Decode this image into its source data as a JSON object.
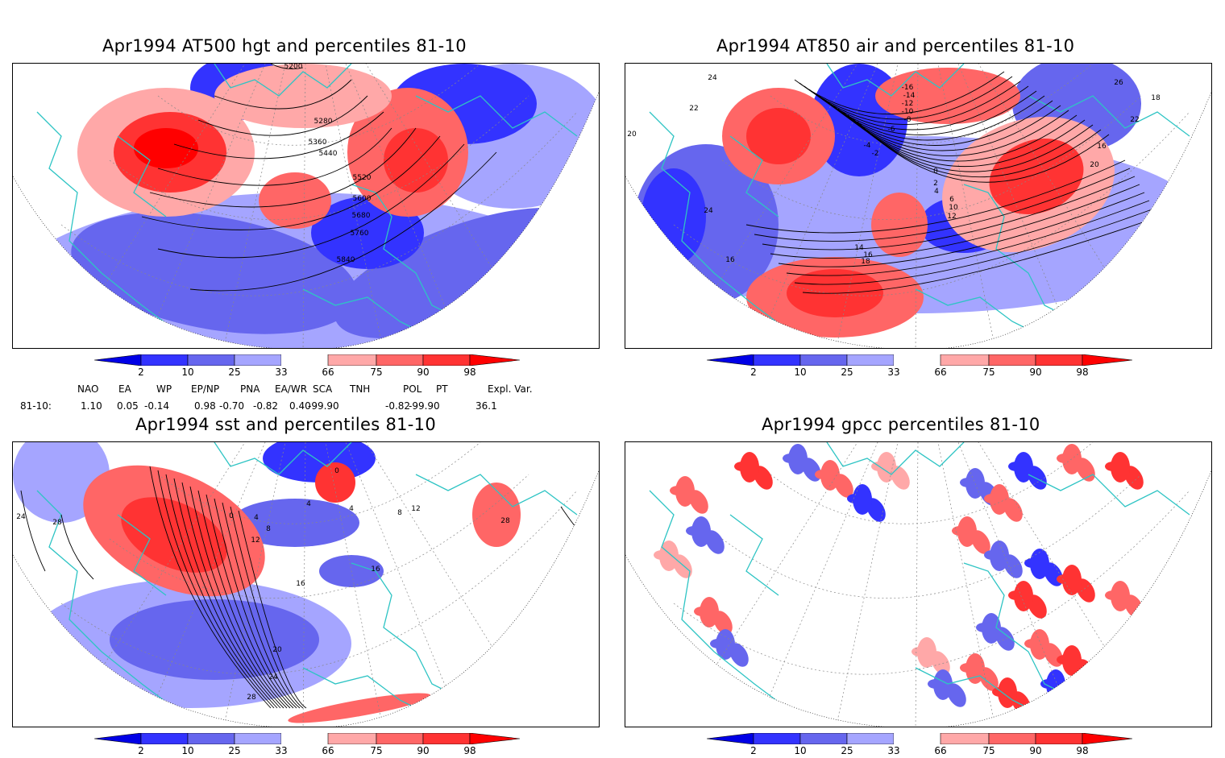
{
  "panels": {
    "tl": {
      "title": "Apr1994 AT500 hgt and percentiles 81-10",
      "contour_labels": [
        "5200",
        "5280",
        "5360",
        "5440",
        "5520",
        "5600",
        "5680",
        "5760",
        "5840"
      ]
    },
    "tr": {
      "title": "Apr1994 AT850 air and percentiles 81-10",
      "contour_labels": [
        "-16",
        "-14",
        "-12",
        "-10",
        "-8",
        "-6",
        "-4",
        "-2",
        "0",
        "2",
        "4",
        "6",
        "10",
        "12",
        "14",
        "16",
        "18",
        "20",
        "22",
        "24",
        "26",
        "18",
        "16",
        "20",
        "22",
        "24",
        "16"
      ]
    },
    "bl": {
      "title": "Apr1994 sst and percentiles 81-10",
      "contour_labels": [
        "24",
        "28",
        "0",
        "4",
        "8",
        "12",
        "16",
        "20",
        "24",
        "28",
        "0",
        "4",
        "16",
        "4",
        "8",
        "12",
        "28"
      ]
    },
    "br": {
      "title": "Apr1994 gpcc percentiles 81-10",
      "contour_labels": []
    }
  },
  "colorbar": {
    "labels": [
      "2",
      "10",
      "25",
      "33",
      "66",
      "75",
      "90",
      "98"
    ],
    "colors": [
      "#0000e6",
      "#3333ff",
      "#6666ee",
      "#a5a5ff",
      "#ffffff",
      "#ffa8a8",
      "#ff6666",
      "#ff3333",
      "#ff0000"
    ]
  },
  "indices": {
    "headers": [
      "NAO",
      "EA",
      "WP",
      "EP/NP",
      "PNA",
      "EA/WR",
      "SCA",
      "TNH",
      "POL",
      "PT",
      "Expl. Var."
    ],
    "row_label": "81-10:",
    "values": [
      "1.10",
      "0.05",
      "-0.14",
      "0.98",
      "-0.70",
      "-0.82",
      "0.40",
      "-99.90",
      "-0.82",
      "-99.90",
      "36.1"
    ]
  },
  "colors": {
    "coast": "#2ec4c4",
    "grid": "#888888",
    "contour": "#000000"
  }
}
